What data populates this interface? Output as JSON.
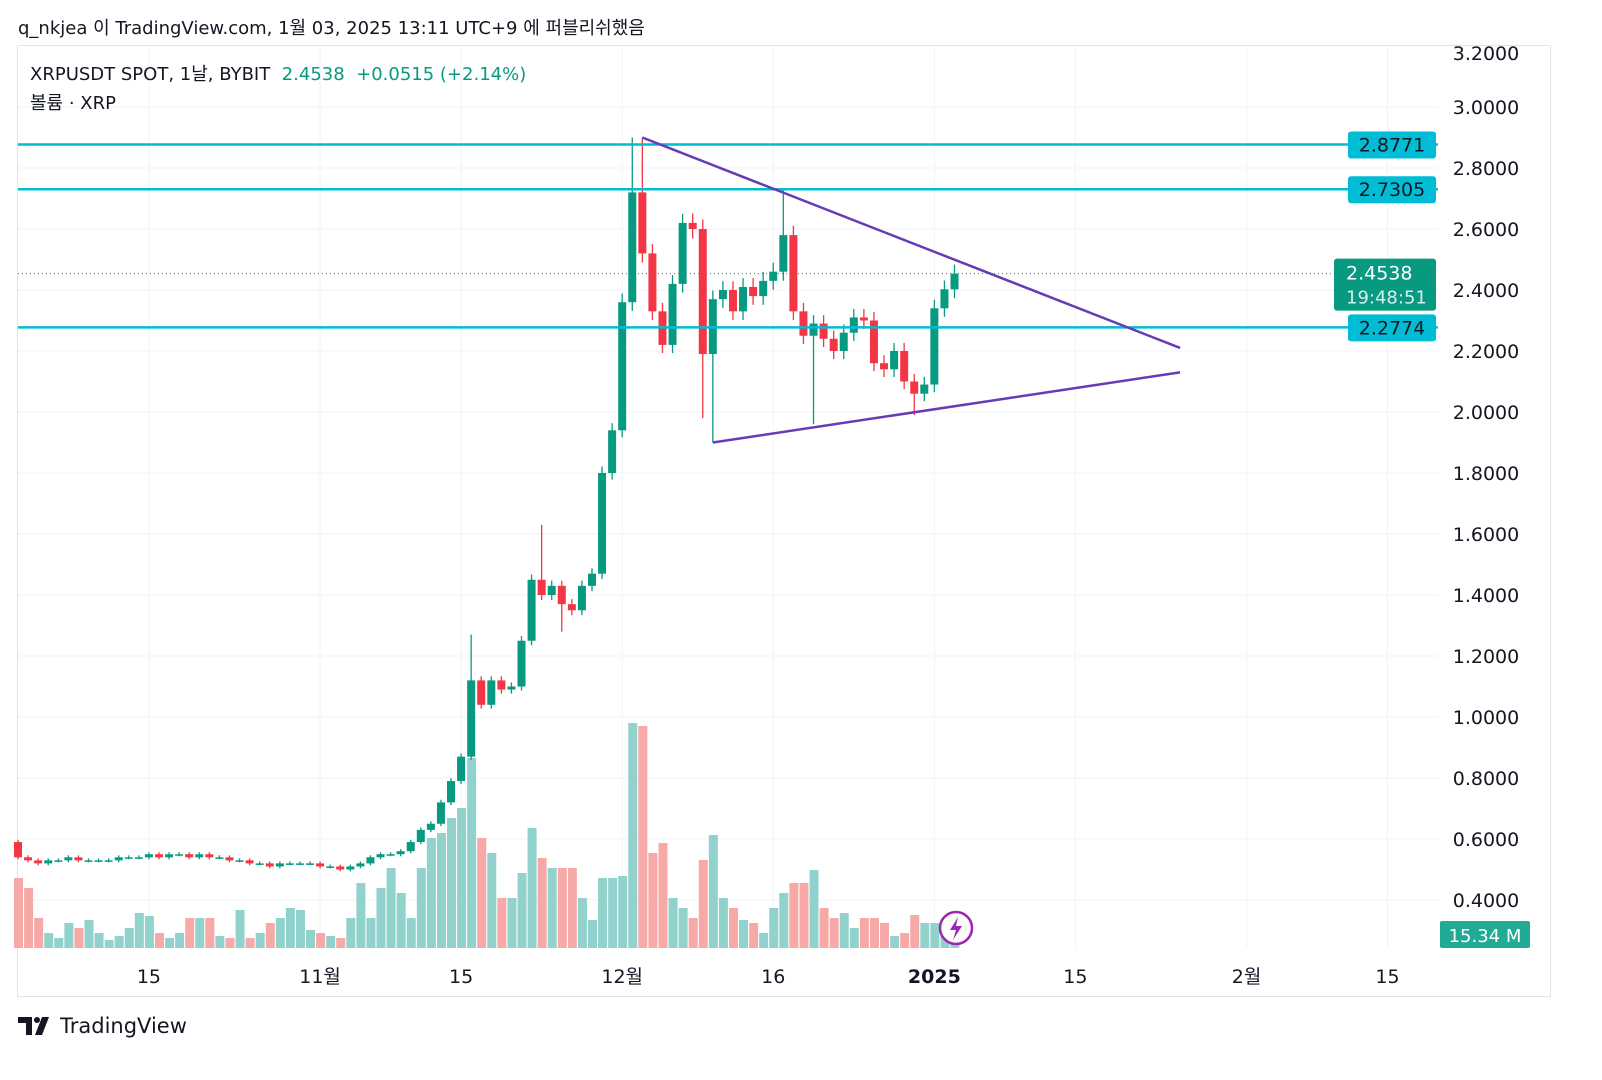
{
  "header": {
    "publish_text": "q_nkjea 이 TradingView.com, 1월 03, 2025 13:11 UTC+9 에 퍼블리쉬했음"
  },
  "legend": {
    "symbol": "XRPUSDT SPOT, 1날, BYBIT",
    "last": "2.4538",
    "change": "+0.0515 (+2.14%)",
    "volume_label": "볼륨 · XRP"
  },
  "price_labels": {
    "current": "2.4538",
    "countdown": "19:48:51",
    "volume": "15.34 M"
  },
  "colors": {
    "up": "#089981",
    "down": "#f23645",
    "up_vol": "#92d2cc",
    "down_vol": "#f7a9a7",
    "hline": "#00bcd4",
    "trend": "#673ab7",
    "grid": "#f0f3fa"
  },
  "branding": {
    "logo": "TradingView"
  },
  "chart_data": {
    "type": "candlestick",
    "title": "XRPUSDT SPOT, 1날, BYBIT",
    "start_date": "2024-10-02",
    "ylim": [
      0.3,
      3.2
    ],
    "y_ticks": [
      "3.2000",
      "3.0000",
      "2.8000",
      "2.6000",
      "2.4000",
      "2.2000",
      "2.0000",
      "1.8000",
      "1.6000",
      "1.4000",
      "1.2000",
      "1.0000",
      "0.8000",
      "0.6000",
      "0.4000"
    ],
    "x_ticks": [
      {
        "day": 13,
        "label": "15"
      },
      {
        "day": 30,
        "label": "11월"
      },
      {
        "day": 44,
        "label": "15"
      },
      {
        "day": 60,
        "label": "12월"
      },
      {
        "day": 75,
        "label": "16"
      },
      {
        "day": 91,
        "label": "2025",
        "bold": true
      },
      {
        "day": 105,
        "label": "15"
      },
      {
        "day": 122,
        "label": "2월"
      },
      {
        "day": 136,
        "label": "15"
      }
    ],
    "first_open": 0.59,
    "closes": [
      0.54,
      0.53,
      0.52,
      0.53,
      0.53,
      0.54,
      0.53,
      0.53,
      0.53,
      0.53,
      0.54,
      0.54,
      0.54,
      0.55,
      0.54,
      0.55,
      0.55,
      0.54,
      0.55,
      0.54,
      0.54,
      0.53,
      0.53,
      0.52,
      0.52,
      0.51,
      0.52,
      0.52,
      0.52,
      0.52,
      0.51,
      0.51,
      0.5,
      0.51,
      0.52,
      0.54,
      0.55,
      0.55,
      0.56,
      0.59,
      0.63,
      0.65,
      0.72,
      0.79,
      0.87,
      1.12,
      1.04,
      1.12,
      1.09,
      1.1,
      1.25,
      1.45,
      1.4,
      1.43,
      1.37,
      1.35,
      1.43,
      1.47,
      1.8,
      1.94,
      2.36,
      2.72,
      2.52,
      2.33,
      2.22,
      2.42,
      2.62,
      2.6,
      2.19,
      2.37,
      2.4,
      2.33,
      2.41,
      2.38,
      2.43,
      2.46,
      2.58,
      2.33,
      2.25,
      2.29,
      2.24,
      2.2,
      2.26,
      2.31,
      2.3,
      2.16,
      2.14,
      2.2,
      2.1,
      2.06,
      2.09,
      2.34,
      2.4023,
      2.4538
    ],
    "high_overrides": {
      "45": 1.27,
      "52": 1.63,
      "61": 2.9,
      "62": 2.9,
      "76": 2.73,
      "66": 2.65
    },
    "low_overrides": {
      "54": 1.28,
      "69": 1.9,
      "79": 1.96,
      "89": 1.99,
      "68": 1.98
    },
    "volumes_m": [
      70,
      60,
      30,
      15,
      10,
      25,
      20,
      28,
      15,
      8,
      12,
      20,
      35,
      32,
      15,
      10,
      15,
      30,
      30,
      30,
      12,
      10,
      38,
      10,
      15,
      25,
      30,
      40,
      38,
      18,
      15,
      12,
      10,
      30,
      65,
      30,
      60,
      80,
      55,
      30,
      80,
      110,
      115,
      130,
      140,
      190,
      110,
      95,
      50,
      50,
      75,
      120,
      90,
      80,
      80,
      80,
      50,
      28,
      70,
      70,
      72,
      225,
      222,
      95,
      105,
      50,
      40,
      30,
      88,
      113,
      50,
      40,
      28,
      25,
      15,
      40,
      55,
      65,
      65,
      78,
      40,
      30,
      35,
      20,
      30,
      30,
      25,
      12,
      15,
      33,
      25,
      25,
      18,
      15.34
    ],
    "horizontal_lines": [
      {
        "price": 2.8771,
        "label": "2.8771"
      },
      {
        "price": 2.7305,
        "label": "2.7305"
      },
      {
        "price": 2.2774,
        "label": "2.2774"
      }
    ],
    "trendlines": [
      {
        "from": [
          62,
          2.9
        ],
        "to": [
          115.4,
          2.21
        ]
      },
      {
        "from": [
          69,
          1.9
        ],
        "to": [
          115.4,
          2.13
        ]
      }
    ]
  }
}
